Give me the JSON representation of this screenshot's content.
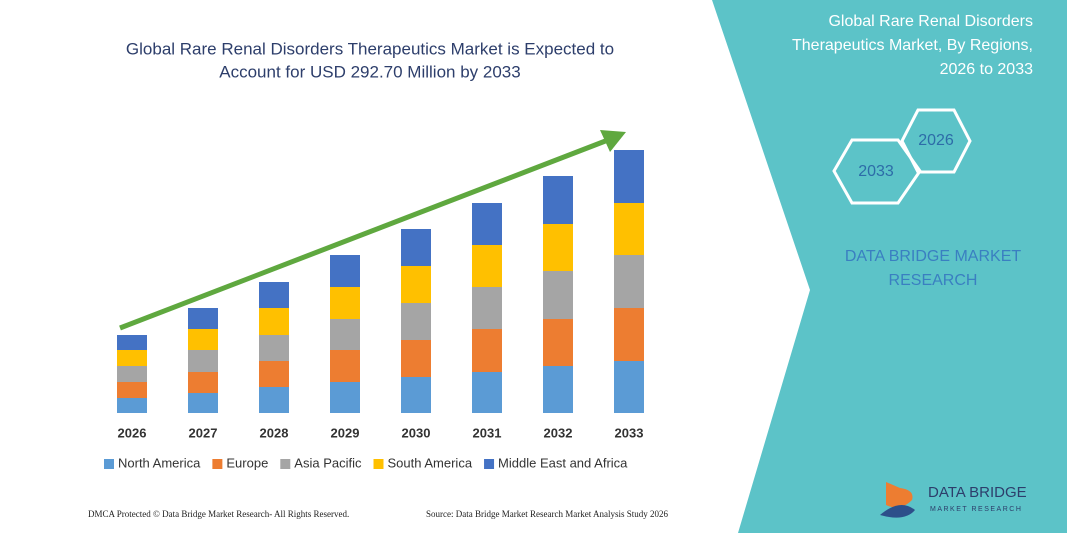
{
  "chart_data": {
    "type": "stacked_bar",
    "title": [
      "Global Rare Renal Disorders Therapeutics Market is Expected to",
      "Account for USD 292.70 Million by 2033"
    ],
    "categories": [
      "2026",
      "2027",
      "2028",
      "2029",
      "2030",
      "2031",
      "2032",
      "2033"
    ],
    "series": [
      {
        "name": "North America",
        "color": "#5b9bd5",
        "values": [
          15,
          20,
          26,
          31,
          36,
          41,
          47,
          52
        ]
      },
      {
        "name": "Europe",
        "color": "#ed7d31",
        "values": [
          16,
          21,
          26,
          32,
          37,
          43,
          47,
          53
        ]
      },
      {
        "name": "Asia Pacific",
        "color": "#a5a5a5",
        "values": [
          16,
          22,
          26,
          31,
          37,
          42,
          48,
          53
        ]
      },
      {
        "name": "South America",
        "color": "#ffc000",
        "values": [
          16,
          21,
          27,
          32,
          37,
          42,
          47,
          52
        ]
      },
      {
        "name": "Middle East and Africa",
        "color": "#4472c4",
        "values": [
          15,
          21,
          26,
          32,
          37,
          42,
          48,
          53
        ]
      }
    ]
  },
  "side_panel": {
    "title": [
      "Global Rare Renal Disorders",
      "Therapeutics Market, By Regions,",
      "2026 to 2033"
    ],
    "hex_labels": [
      "2026",
      "2033"
    ],
    "brand": [
      "DATA BRIDGE MARKET",
      "RESEARCH"
    ]
  },
  "footer": {
    "left": "DMCA Protected © Data Bridge Market Research- All Rights Reserved.",
    "right": "Source: Data Bridge Market Research Market Analysis Study 2026"
  },
  "logo": {
    "name": "DATA BRIDGE",
    "tagline": "MARKET RESEARCH"
  }
}
